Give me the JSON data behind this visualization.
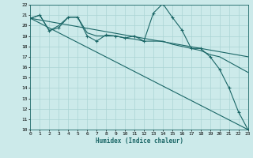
{
  "xlabel": "Humidex (Indice chaleur)",
  "xlim": [
    0,
    23
  ],
  "ylim": [
    10,
    22
  ],
  "yticks": [
    10,
    11,
    12,
    13,
    14,
    15,
    16,
    17,
    18,
    19,
    20,
    21,
    22
  ],
  "xticks": [
    0,
    1,
    2,
    3,
    4,
    5,
    6,
    7,
    8,
    9,
    10,
    11,
    12,
    13,
    14,
    15,
    16,
    17,
    18,
    19,
    20,
    21,
    22,
    23
  ],
  "bg_color": "#cceaea",
  "grid_color": "#aad4d4",
  "line_color": "#1a6666",
  "series_marked": {
    "x": [
      0,
      1,
      2,
      3,
      4,
      5,
      6,
      7,
      8,
      9,
      10,
      11,
      12,
      13,
      14,
      15,
      16,
      17,
      18,
      19,
      20,
      21,
      22,
      23
    ],
    "y": [
      20.7,
      21.0,
      19.5,
      19.8,
      20.8,
      20.8,
      19.0,
      18.5,
      19.1,
      19.0,
      18.8,
      19.0,
      18.5,
      21.2,
      22.1,
      20.8,
      19.6,
      17.8,
      17.8,
      17.0,
      15.8,
      14.0,
      11.7,
      10.0
    ]
  },
  "series_smooth": {
    "x": [
      0,
      1,
      2,
      3,
      4,
      5,
      6,
      7,
      8,
      9,
      10,
      11,
      12,
      13,
      14,
      15,
      16,
      17,
      18,
      19,
      20,
      21,
      22,
      23
    ],
    "y": [
      20.7,
      21.0,
      19.5,
      20.0,
      20.8,
      20.8,
      19.3,
      19.0,
      19.0,
      19.0,
      18.8,
      18.7,
      18.5,
      18.5,
      18.5,
      18.2,
      18.0,
      17.8,
      17.6,
      17.2,
      17.0,
      16.5,
      16.0,
      15.5
    ]
  },
  "series_diag1": {
    "x": [
      0,
      23
    ],
    "y": [
      20.7,
      10.0
    ]
  },
  "series_diag2": {
    "x": [
      0,
      23
    ],
    "y": [
      20.7,
      17.0
    ]
  }
}
